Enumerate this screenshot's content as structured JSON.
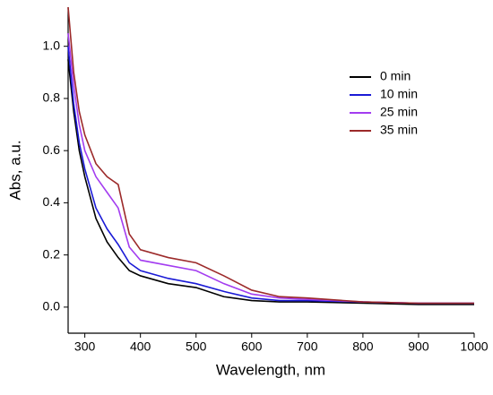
{
  "chart_data": {
    "type": "line",
    "x_label": "Wavelength, nm",
    "y_label": "Abs, a.u.",
    "x": [
      270,
      280,
      290,
      300,
      320,
      340,
      360,
      380,
      400,
      450,
      500,
      550,
      600,
      650,
      700,
      800,
      900,
      1000
    ],
    "series": [
      {
        "name": "0 min",
        "color": "#000000",
        "values": [
          0.95,
          0.75,
          0.6,
          0.5,
          0.34,
          0.25,
          0.19,
          0.14,
          0.12,
          0.09,
          0.075,
          0.04,
          0.025,
          0.02,
          0.02,
          0.015,
          0.01,
          0.01
        ]
      },
      {
        "name": "10 min",
        "color": "#1a1ad6",
        "values": [
          1.0,
          0.78,
          0.63,
          0.53,
          0.38,
          0.3,
          0.24,
          0.17,
          0.14,
          0.11,
          0.09,
          0.06,
          0.035,
          0.025,
          0.025,
          0.02,
          0.015,
          0.015
        ]
      },
      {
        "name": "25 min",
        "color": "#a33cf0",
        "values": [
          1.05,
          0.85,
          0.7,
          0.6,
          0.5,
          0.44,
          0.38,
          0.23,
          0.18,
          0.16,
          0.14,
          0.09,
          0.05,
          0.035,
          0.03,
          0.02,
          0.015,
          0.015
        ]
      },
      {
        "name": "35 min",
        "color": "#9c2a2a",
        "values": [
          1.15,
          0.9,
          0.75,
          0.66,
          0.55,
          0.5,
          0.47,
          0.28,
          0.22,
          0.19,
          0.17,
          0.12,
          0.065,
          0.04,
          0.035,
          0.02,
          0.015,
          0.015
        ]
      }
    ],
    "xlim": [
      270,
      1000
    ],
    "ylim": [
      -0.1,
      1.15
    ],
    "xticks": [
      300,
      400,
      500,
      600,
      700,
      800,
      900,
      1000
    ],
    "yticks": [
      {
        "value": 0,
        "label": "0.0"
      },
      0.2,
      0.4,
      0.6,
      0.8,
      {
        "value": 1,
        "label": "1.0"
      }
    ],
    "legend": "upper right",
    "grid": false
  }
}
